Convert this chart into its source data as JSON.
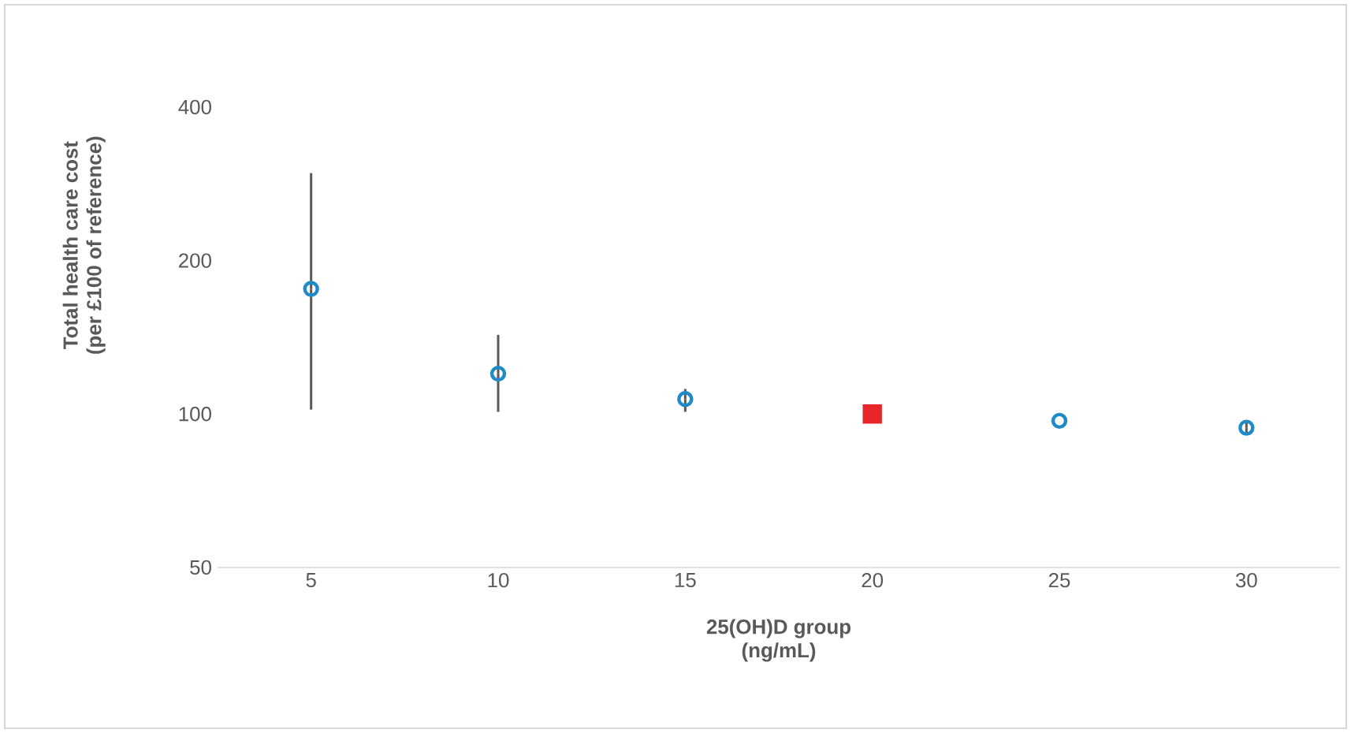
{
  "chart_data": {
    "type": "scatter",
    "xlabel": "25(OH)D group\n(ng/mL)",
    "ylabel": "Total health care cost\n(per £100 of reference)",
    "log": "y",
    "xlim": [
      2.5,
      32.5
    ],
    "xticks": [
      5,
      10,
      15,
      20,
      25,
      30
    ],
    "ylim": [
      50,
      400
    ],
    "yticks": [
      50,
      100,
      200,
      400
    ],
    "series": [
      {
        "marker": "circle",
        "color": "#1f8ac8",
        "x": [
          5,
          10,
          15,
          25,
          30
        ],
        "values": [
          176,
          120,
          107,
          97,
          94
        ],
        "errors": [
          [
            102,
            297
          ],
          [
            101,
            143
          ],
          [
            101,
            112
          ],
          null,
          [
            91,
            97
          ]
        ]
      },
      {
        "marker": "square",
        "color": "#e8262a",
        "x": [
          20
        ],
        "values": [
          100
        ]
      }
    ]
  }
}
